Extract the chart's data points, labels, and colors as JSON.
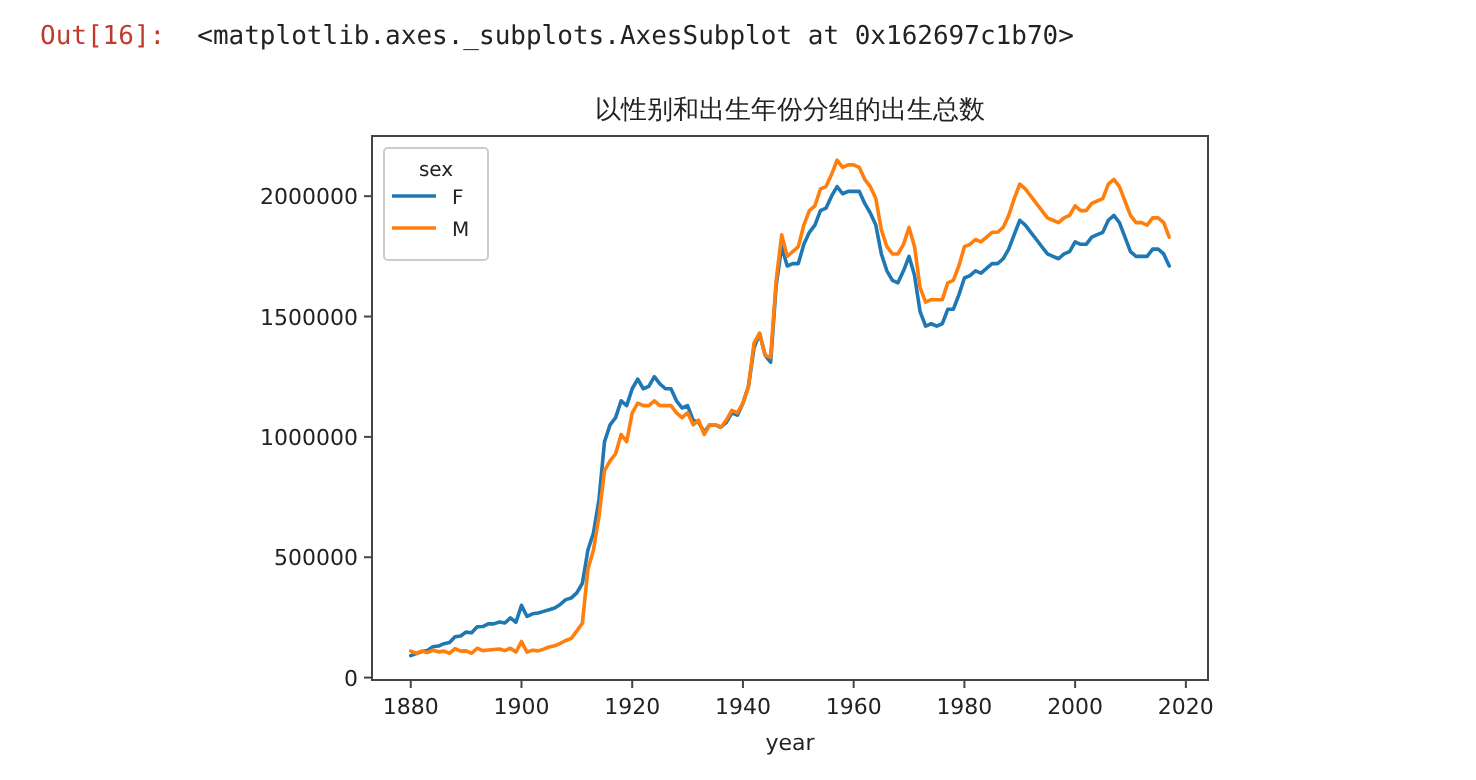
{
  "chart_data": {
    "type": "line",
    "title": "以性别和出生年份分组的出生总数",
    "xlabel": "year",
    "legend_title": "sex",
    "legend": "top left",
    "grid": false,
    "marker": "none",
    "line_style": "solid",
    "annotations": [
      "Out[16]:",
      "<matplotlib.axes._subplots.AxesSubplot at 0x162697c1b70>"
    ],
    "x": [
      1880,
      1881,
      1882,
      1883,
      1884,
      1885,
      1886,
      1887,
      1888,
      1889,
      1890,
      1891,
      1892,
      1893,
      1894,
      1895,
      1896,
      1897,
      1898,
      1899,
      1900,
      1901,
      1902,
      1903,
      1904,
      1905,
      1906,
      1907,
      1908,
      1909,
      1910,
      1911,
      1912,
      1913,
      1914,
      1915,
      1916,
      1917,
      1918,
      1919,
      1920,
      1921,
      1922,
      1923,
      1924,
      1925,
      1926,
      1927,
      1928,
      1929,
      1930,
      1931,
      1932,
      1933,
      1934,
      1935,
      1936,
      1937,
      1938,
      1939,
      1940,
      1941,
      1942,
      1943,
      1944,
      1945,
      1946,
      1947,
      1948,
      1949,
      1950,
      1951,
      1952,
      1953,
      1954,
      1955,
      1956,
      1957,
      1958,
      1959,
      1960,
      1961,
      1962,
      1963,
      1964,
      1965,
      1966,
      1967,
      1968,
      1969,
      1970,
      1971,
      1972,
      1973,
      1974,
      1975,
      1976,
      1977,
      1978,
      1979,
      1980,
      1981,
      1982,
      1983,
      1984,
      1985,
      1986,
      1987,
      1988,
      1989,
      1990,
      1991,
      1992,
      1993,
      1994,
      1995,
      1996,
      1997,
      1998,
      1999,
      2000,
      2001,
      2002,
      2003,
      2004,
      2005,
      2006,
      2007,
      2008,
      2009,
      2010,
      2011,
      2012,
      2013,
      2014,
      2015,
      2016,
      2017
    ],
    "xlim": [
      1873,
      2024
    ],
    "xticks": [
      1880,
      1900,
      1920,
      1940,
      1960,
      1980,
      2000,
      2020
    ],
    "ylim": [
      -10000,
      2250000
    ],
    "yticks": [
      0,
      500000,
      1000000,
      1500000,
      2000000
    ],
    "series": [
      {
        "name": "F",
        "color": "#1f77b4",
        "values": [
          91000,
          100000,
          108000,
          113000,
          128000,
          131000,
          141000,
          146000,
          170000,
          173000,
          189000,
          186000,
          211000,
          212000,
          223000,
          223000,
          231000,
          227000,
          248000,
          230000,
          300000,
          254000,
          265000,
          268000,
          275000,
          282000,
          289000,
          304000,
          324000,
          331000,
          352000,
          392000,
          530000,
          600000,
          740000,
          980000,
          1050000,
          1080000,
          1150000,
          1130000,
          1200000,
          1240000,
          1200000,
          1210000,
          1250000,
          1220000,
          1200000,
          1200000,
          1150000,
          1120000,
          1130000,
          1070000,
          1060000,
          1020000,
          1050000,
          1050000,
          1040000,
          1060000,
          1100000,
          1090000,
          1140000,
          1210000,
          1370000,
          1430000,
          1340000,
          1310000,
          1630000,
          1790000,
          1710000,
          1720000,
          1720000,
          1800000,
          1850000,
          1880000,
          1940000,
          1950000,
          2000000,
          2040000,
          2010000,
          2020000,
          2020000,
          2020000,
          1970000,
          1930000,
          1880000,
          1760000,
          1690000,
          1650000,
          1640000,
          1690000,
          1750000,
          1670000,
          1520000,
          1460000,
          1470000,
          1460000,
          1470000,
          1530000,
          1530000,
          1590000,
          1660000,
          1670000,
          1690000,
          1680000,
          1700000,
          1720000,
          1720000,
          1740000,
          1780000,
          1840000,
          1900000,
          1880000,
          1850000,
          1820000,
          1790000,
          1760000,
          1750000,
          1740000,
          1760000,
          1770000,
          1810000,
          1800000,
          1800000,
          1830000,
          1840000,
          1850000,
          1900000,
          1920000,
          1890000,
          1830000,
          1770000,
          1750000,
          1750000,
          1750000,
          1780000,
          1780000,
          1760000,
          1710000
        ]
      },
      {
        "name": "M",
        "color": "#ff7f0e",
        "values": [
          110000,
          101000,
          110000,
          104000,
          114000,
          107000,
          110000,
          101000,
          120000,
          110000,
          111000,
          101000,
          122000,
          112000,
          115000,
          117000,
          119000,
          112000,
          122000,
          106000,
          150000,
          106000,
          114000,
          111000,
          118000,
          127000,
          132000,
          142000,
          154000,
          163000,
          194000,
          226000,
          450000,
          530000,
          670000,
          860000,
          900000,
          930000,
          1010000,
          980000,
          1100000,
          1140000,
          1130000,
          1130000,
          1150000,
          1130000,
          1130000,
          1130000,
          1100000,
          1080000,
          1100000,
          1050000,
          1070000,
          1010000,
          1050000,
          1050000,
          1040000,
          1070000,
          1110000,
          1100000,
          1140000,
          1210000,
          1390000,
          1430000,
          1340000,
          1330000,
          1650000,
          1840000,
          1750000,
          1770000,
          1790000,
          1880000,
          1940000,
          1960000,
          2030000,
          2040000,
          2090000,
          2150000,
          2120000,
          2130000,
          2130000,
          2120000,
          2070000,
          2040000,
          1990000,
          1860000,
          1790000,
          1760000,
          1760000,
          1800000,
          1870000,
          1790000,
          1620000,
          1560000,
          1570000,
          1570000,
          1570000,
          1640000,
          1650000,
          1710000,
          1790000,
          1800000,
          1820000,
          1810000,
          1830000,
          1850000,
          1850000,
          1870000,
          1920000,
          1990000,
          2050000,
          2030000,
          2000000,
          1970000,
          1940000,
          1910000,
          1900000,
          1890000,
          1910000,
          1920000,
          1960000,
          1940000,
          1940000,
          1970000,
          1980000,
          1990000,
          2050000,
          2070000,
          2040000,
          1980000,
          1920000,
          1890000,
          1890000,
          1880000,
          1910000,
          1910000,
          1890000,
          1830000
        ]
      }
    ]
  }
}
